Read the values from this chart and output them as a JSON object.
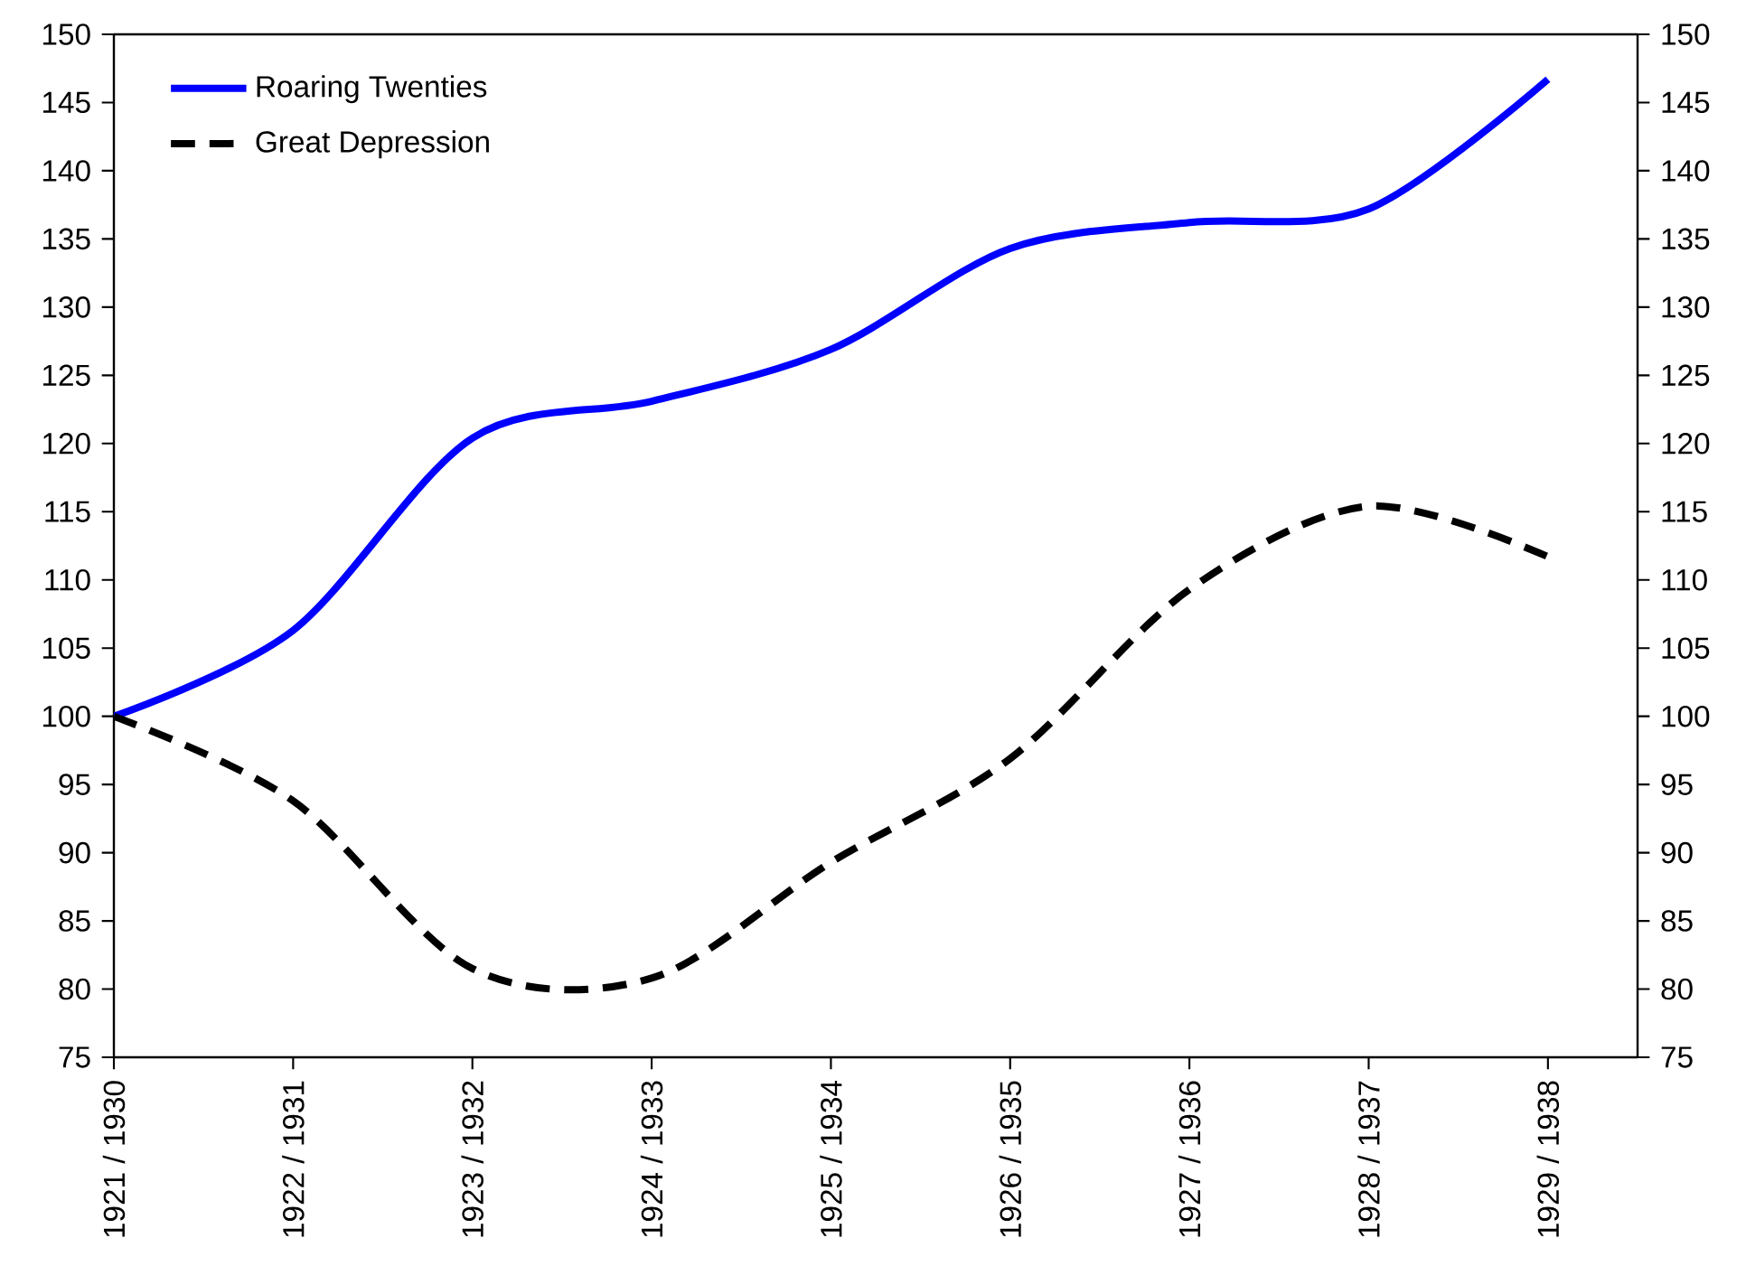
{
  "chart_data": {
    "type": "line",
    "categories": [
      "1921 / 1930",
      "1922 / 1931",
      "1923 / 1932",
      "1924 / 1933",
      "1925 / 1934",
      "1926 / 1935",
      "1927 / 1936",
      "1928 / 1937",
      "1929 / 1938"
    ],
    "series": [
      {
        "name": "Roaring Twenties",
        "color": "#0000ff",
        "line_style": "solid",
        "values": [
          100,
          106.3,
          120.4,
          123.1,
          126.9,
          134.3,
          136.2,
          137.2,
          146.7
        ]
      },
      {
        "name": "Great Depression",
        "color": "#000000",
        "line_style": "dashed",
        "values": [
          100,
          93.8,
          81.5,
          80.8,
          89.3,
          96.9,
          109.3,
          115.4,
          111.7
        ]
      }
    ],
    "ylim": [
      75,
      150
    ],
    "yticks": [
      75,
      80,
      85,
      90,
      95,
      100,
      105,
      110,
      115,
      120,
      125,
      130,
      135,
      140,
      145,
      150
    ],
    "y2lim": [
      75,
      150
    ],
    "y2ticks": [
      75,
      80,
      85,
      90,
      95,
      100,
      105,
      110,
      115,
      120,
      125,
      130,
      135,
      140,
      145,
      150
    ],
    "grid": false,
    "legend": "top left",
    "marker": "none"
  }
}
